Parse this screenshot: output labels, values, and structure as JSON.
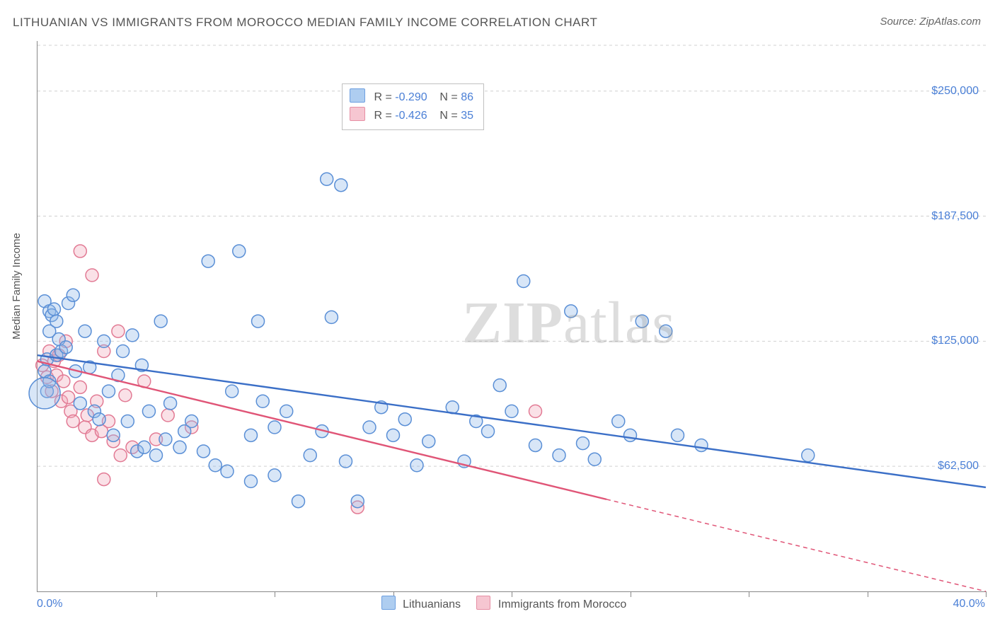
{
  "title": "LITHUANIAN VS IMMIGRANTS FROM MOROCCO MEDIAN FAMILY INCOME CORRELATION CHART",
  "source": "Source: ZipAtlas.com",
  "watermark": {
    "bold": "ZIP",
    "thin": "atlas"
  },
  "ylabel": "Median Family Income",
  "chart": {
    "type": "scatter",
    "background_color": "#ffffff",
    "grid_color": "#d0d0d0",
    "grid_dash": "4,4",
    "xlim": [
      0,
      40
    ],
    "ylim": [
      0,
      275000
    ],
    "ytick_positions": [
      62500,
      125000,
      187500,
      250000
    ],
    "ytick_labels": [
      "$62,500",
      "$125,000",
      "$187,500",
      "$250,000"
    ],
    "xtick_step": 5,
    "xlabel_min": "0.0%",
    "xlabel_max": "40.0%",
    "ylabel_color": "#4a7fd6",
    "ylabel_fontsize": 16,
    "marker_radius": 9,
    "marker_stroke_width": 1.5,
    "marker_fill_opacity": 0.35,
    "trend_line_width": 2.4,
    "series": {
      "a": {
        "label": "Lithuanians",
        "swatch_fill": "#aecdf0",
        "swatch_stroke": "#6d9fe0",
        "marker_fill": "#8fb8e8",
        "marker_stroke": "#5a8fd6",
        "trend_color": "#3b6fc7",
        "trend_y0": 118000,
        "trend_y1": 52000,
        "trend_x0": 0,
        "trend_x1": 40,
        "trend_dash_after_x": 40,
        "points": [
          [
            0.3,
            110000
          ],
          [
            0.3,
            145000
          ],
          [
            0.4,
            116000
          ],
          [
            0.4,
            100000
          ],
          [
            0.5,
            130000
          ],
          [
            0.5,
            140000
          ],
          [
            0.6,
            138000
          ],
          [
            0.7,
            141000
          ],
          [
            0.8,
            135000
          ],
          [
            0.8,
            118000
          ],
          [
            0.9,
            126000
          ],
          [
            1.0,
            120000
          ],
          [
            1.2,
            122000
          ],
          [
            1.3,
            144000
          ],
          [
            1.5,
            148000
          ],
          [
            1.6,
            110000
          ],
          [
            1.8,
            94000
          ],
          [
            2.0,
            130000
          ],
          [
            2.2,
            112000
          ],
          [
            2.4,
            90000
          ],
          [
            2.6,
            86000
          ],
          [
            2.8,
            125000
          ],
          [
            3.0,
            100000
          ],
          [
            3.2,
            78000
          ],
          [
            3.4,
            108000
          ],
          [
            3.6,
            120000
          ],
          [
            3.8,
            85000
          ],
          [
            4.0,
            128000
          ],
          [
            4.2,
            70000
          ],
          [
            4.4,
            113000
          ],
          [
            4.5,
            72000
          ],
          [
            4.7,
            90000
          ],
          [
            5.0,
            68000
          ],
          [
            5.2,
            135000
          ],
          [
            5.4,
            76000
          ],
          [
            5.6,
            94000
          ],
          [
            6.0,
            72000
          ],
          [
            6.2,
            80000
          ],
          [
            6.5,
            85000
          ],
          [
            7.0,
            70000
          ],
          [
            7.2,
            165000
          ],
          [
            7.5,
            63000
          ],
          [
            8.0,
            60000
          ],
          [
            8.2,
            100000
          ],
          [
            8.5,
            170000
          ],
          [
            9.0,
            78000
          ],
          [
            9.0,
            55000
          ],
          [
            9.3,
            135000
          ],
          [
            9.5,
            95000
          ],
          [
            10.0,
            58000
          ],
          [
            10.0,
            82000
          ],
          [
            10.5,
            90000
          ],
          [
            11.0,
            45000
          ],
          [
            11.5,
            68000
          ],
          [
            12.0,
            80000
          ],
          [
            12.2,
            206000
          ],
          [
            12.4,
            137000
          ],
          [
            12.8,
            203000
          ],
          [
            13.0,
            65000
          ],
          [
            13.5,
            45000
          ],
          [
            14.0,
            82000
          ],
          [
            14.5,
            92000
          ],
          [
            15.0,
            78000
          ],
          [
            15.5,
            86000
          ],
          [
            16.0,
            63000
          ],
          [
            16.5,
            75000
          ],
          [
            17.5,
            92000
          ],
          [
            18.0,
            65000
          ],
          [
            18.5,
            85000
          ],
          [
            19.0,
            80000
          ],
          [
            19.5,
            103000
          ],
          [
            20.0,
            90000
          ],
          [
            20.5,
            155000
          ],
          [
            21.0,
            73000
          ],
          [
            22.0,
            68000
          ],
          [
            22.5,
            140000
          ],
          [
            23.0,
            74000
          ],
          [
            23.5,
            66000
          ],
          [
            24.5,
            85000
          ],
          [
            25.0,
            78000
          ],
          [
            25.5,
            135000
          ],
          [
            26.5,
            130000
          ],
          [
            27.0,
            78000
          ],
          [
            28.0,
            73000
          ],
          [
            32.5,
            68000
          ],
          [
            0.5,
            105000
          ]
        ]
      },
      "b": {
        "label": "Immigrants from Morocco",
        "swatch_fill": "#f6c6d1",
        "swatch_stroke": "#e68fa4",
        "marker_fill": "#f2aabb",
        "marker_stroke": "#e27a94",
        "trend_color": "#e05577",
        "trend_y0": 115000,
        "trend_y1": 0,
        "trend_x0": 0,
        "trend_x1": 40,
        "trend_dash_after_x": 24,
        "points": [
          [
            0.2,
            113000
          ],
          [
            0.4,
            107000
          ],
          [
            0.5,
            120000
          ],
          [
            0.6,
            100000
          ],
          [
            0.7,
            115000
          ],
          [
            0.8,
            108000
          ],
          [
            0.9,
            118000
          ],
          [
            1.0,
            95000
          ],
          [
            1.1,
            105000
          ],
          [
            1.2,
            125000
          ],
          [
            1.3,
            97000
          ],
          [
            1.4,
            90000
          ],
          [
            1.5,
            85000
          ],
          [
            1.8,
            170000
          ],
          [
            1.8,
            102000
          ],
          [
            2.0,
            82000
          ],
          [
            2.1,
            88000
          ],
          [
            2.3,
            78000
          ],
          [
            2.3,
            158000
          ],
          [
            2.5,
            95000
          ],
          [
            2.7,
            80000
          ],
          [
            2.8,
            120000
          ],
          [
            2.8,
            56000
          ],
          [
            3.0,
            85000
          ],
          [
            3.2,
            75000
          ],
          [
            3.4,
            130000
          ],
          [
            3.5,
            68000
          ],
          [
            3.7,
            98000
          ],
          [
            4.0,
            72000
          ],
          [
            4.5,
            105000
          ],
          [
            5.0,
            76000
          ],
          [
            5.5,
            88000
          ],
          [
            6.5,
            82000
          ],
          [
            13.5,
            42000
          ],
          [
            21.0,
            90000
          ]
        ]
      }
    },
    "big_points_a": [
      [
        0.3,
        99000,
        22
      ]
    ]
  },
  "legend_top": {
    "rows": [
      {
        "series": "a",
        "R": "-0.290",
        "N": "86"
      },
      {
        "series": "b",
        "R": "-0.426",
        "N": "35"
      }
    ],
    "R_label": "R =",
    "N_label": "N ="
  }
}
